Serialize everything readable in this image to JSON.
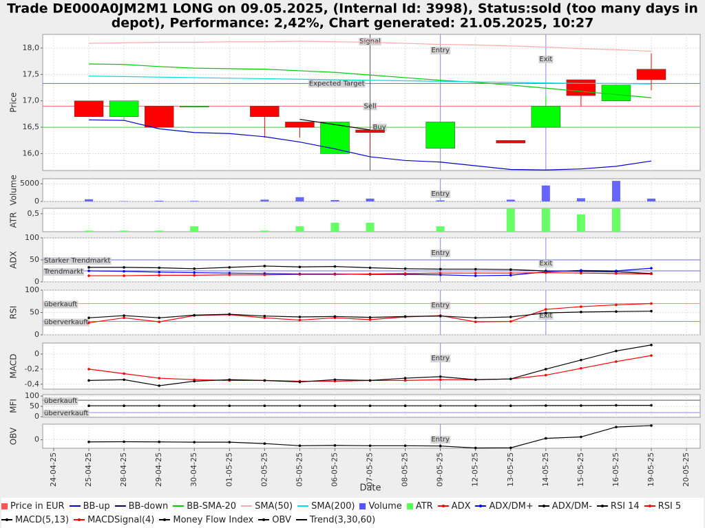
{
  "chart_data": {
    "type": "multipanel",
    "title_lines": [
      "Trade DE000A0JM2M1 LONG on 09.05.2025, (Internal Id: 3998), Status:sold (too many days in",
      "depot), Performance: 2,42%, Chart generated: 21.05.2025, 10:27"
    ],
    "xlabel": "Date",
    "categories": [
      "24-04-25",
      "25-04-25",
      "28-04-25",
      "29-04-25",
      "30-04-25",
      "01-05-25",
      "02-05-25",
      "05-05-25",
      "06-05-25",
      "07-05-25",
      "08-05-25",
      "09-05-25",
      "12-05-25",
      "13-05-25",
      "14-05-25",
      "15-05-25",
      "16-05-25",
      "19-05-25",
      "20-05-25"
    ],
    "grid": true,
    "panels": [
      {
        "type": "candlestick",
        "ylabel": "Price",
        "ylim": [
          15.68,
          18.26
        ],
        "yticks": [
          {
            "value": 16,
            "label": "16,0"
          },
          {
            "value": 16.5,
            "label": "16,5"
          },
          {
            "value": 17,
            "label": "17,0"
          },
          {
            "value": 17.5,
            "label": "17,5"
          },
          {
            "value": 18,
            "label": "18,0"
          }
        ],
        "up_color": "#00ff00",
        "down_color": "#ff0000",
        "open": [
          null,
          17.0,
          16.7,
          16.9,
          16.9,
          null,
          16.9,
          16.6,
          16.0,
          16.45,
          null,
          16.1,
          null,
          16.25,
          16.5,
          17.4,
          17.0,
          17.6,
          null
        ],
        "close": [
          null,
          16.7,
          17.0,
          16.5,
          16.9,
          null,
          16.7,
          16.5,
          16.6,
          16.4,
          null,
          16.6,
          null,
          16.2,
          16.9,
          17.1,
          17.3,
          17.4,
          null
        ],
        "low": [
          null,
          16.7,
          16.62,
          16.5,
          16.9,
          null,
          16.3,
          16.3,
          16.0,
          16.0,
          null,
          16.1,
          null,
          16.2,
          16.5,
          16.9,
          17.0,
          17.2,
          null
        ],
        "high": [
          null,
          17.0,
          17.0,
          16.9,
          16.9,
          null,
          16.9,
          16.6,
          16.6,
          16.45,
          null,
          16.6,
          null,
          16.25,
          17.1,
          17.4,
          17.3,
          17.9,
          null
        ],
        "series": [
          {
            "type": "line",
            "color": "#ffaaaa",
            "values": [
              null,
              18.09,
              18.1,
              18.11,
              18.11,
              18.12,
              18.12,
              18.13,
              18.12,
              18.11,
              18.09,
              18.07,
              18.06,
              18.04,
              18.02,
              17.99,
              17.97,
              17.94,
              null
            ]
          },
          {
            "type": "line",
            "color": "#00cc00",
            "values": [
              null,
              17.7,
              17.69,
              17.65,
              17.62,
              17.61,
              17.6,
              17.57,
              17.54,
              17.49,
              17.44,
              17.39,
              17.35,
              17.3,
              17.24,
              17.18,
              17.12,
              17.06,
              null
            ]
          },
          {
            "type": "line",
            "color": "#00dddd",
            "values": [
              null,
              17.47,
              17.46,
              17.45,
              17.44,
              17.43,
              17.42,
              17.41,
              17.4,
              17.39,
              17.38,
              17.37,
              17.36,
              17.35,
              17.34,
              17.33,
              17.33,
              17.32,
              null
            ]
          },
          {
            "type": "line",
            "color": "#0000cc",
            "values": [
              null,
              16.64,
              16.63,
              16.47,
              16.4,
              16.38,
              16.32,
              16.22,
              16.09,
              15.94,
              15.87,
              15.84,
              15.77,
              15.7,
              15.69,
              15.71,
              15.76,
              15.86,
              null
            ]
          },
          {
            "type": "line",
            "color": "#000000",
            "values": [
              null,
              null,
              null,
              null,
              null,
              null,
              null,
              16.65,
              16.55,
              16.45,
              null,
              null,
              null,
              null,
              null,
              null,
              null,
              null,
              null
            ]
          }
        ],
        "hlines": [
          {
            "label": "Expected Target",
            "value": 17.33,
            "color": "#6666ff"
          },
          {
            "label": "Sell",
            "value": 16.9,
            "color": "#ff6666"
          },
          {
            "label": "Buy",
            "value": 16.5,
            "color": "#44cc44"
          }
        ],
        "vlines": [
          {
            "label": "Signal",
            "at": "07-05-25",
            "color": "#555555"
          },
          {
            "label": "Entry",
            "at": "09-05-25",
            "color": "#8888ff"
          },
          {
            "label": "Exit",
            "at": "14-05-25",
            "color": "#8888ff"
          }
        ]
      },
      {
        "type": "bar",
        "ylabel": "Volume",
        "ylim": [
          0,
          6400
        ],
        "yticks": [
          0,
          5000
        ],
        "series": [
          {
            "type": "bar",
            "color": "#6666ff",
            "values": [
              null,
              600,
              100,
              200,
              150,
              null,
              500,
              1200,
              400,
              800,
              null,
              300,
              null,
              500,
              4500,
              900,
              5800,
              800,
              null
            ]
          }
        ],
        "hlines": [],
        "vlines": [
          {
            "label": "Entry",
            "at": "09-05-25",
            "color": "#8888ff"
          }
        ]
      },
      {
        "type": "bar",
        "ylabel": "ATR",
        "ylim": [
          0,
          0.65
        ],
        "yticks": [
          {
            "value": 0.5,
            "label": "0,5"
          }
        ],
        "series": [
          {
            "type": "bar",
            "color": "#66ff66",
            "values": [
              null,
              0.03,
              0.03,
              0.03,
              0.15,
              null,
              0.03,
              0.15,
              0.25,
              0.25,
              null,
              0.15,
              null,
              0.65,
              0.65,
              0.48,
              0.65,
              null,
              null
            ]
          }
        ],
        "hlines": [],
        "vlines": []
      },
      {
        "type": "line",
        "ylabel": "ADX",
        "ylim": [
          0,
          100
        ],
        "yticks": [
          0,
          50,
          100
        ],
        "series": [
          {
            "type": "line",
            "markers": true,
            "color": "#000000",
            "values": [
              null,
              33,
              33,
              32,
              30,
              33,
              36,
              34,
              35,
              32,
              30,
              29,
              29,
              28,
              25,
              24,
              23,
              19,
              null
            ]
          },
          {
            "type": "line",
            "markers": true,
            "color": "#0000ff",
            "values": [
              null,
              25,
              24,
              22,
              21,
              20,
              19,
              18,
              18,
              17,
              17,
              16,
              14,
              15,
              23,
              26,
              25,
              31,
              null
            ]
          },
          {
            "type": "line",
            "markers": true,
            "color": "#ff0000",
            "values": [
              null,
              14,
              14,
              15,
              15,
              16,
              16,
              17,
              17,
              18,
              19,
              20,
              20,
              20,
              21,
              20,
              19,
              18,
              null
            ]
          }
        ],
        "hlines": [
          {
            "label": "Starker Trendmarkt",
            "value": 50,
            "color": "#6666ff"
          },
          {
            "label": "Trendmarkt",
            "value": 25,
            "color": "#6666ff"
          }
        ],
        "vlines": [
          {
            "label": "Entry",
            "at": "09-05-25",
            "color": "#8888ff"
          },
          {
            "label": "Exit",
            "at": "14-05-25",
            "color": "#8888ff"
          }
        ]
      },
      {
        "type": "line",
        "ylabel": "RSI",
        "ylim": [
          0,
          100
        ],
        "yticks": [
          0,
          50,
          100
        ],
        "series": [
          {
            "type": "line",
            "markers": true,
            "color": "#ff0000",
            "values": [
              null,
              27,
              38,
              29,
              43,
              45,
              38,
              33,
              38,
              34,
              40,
              43,
              29,
              30,
              57,
              63,
              67,
              70,
              null
            ]
          },
          {
            "type": "line",
            "markers": true,
            "color": "#000000",
            "values": [
              null,
              38,
              43,
              38,
              44,
              46,
              42,
              40,
              41,
              39,
              41,
              42,
              38,
              40,
              49,
              51,
              52,
              53,
              null
            ]
          }
        ],
        "hlines": [
          {
            "label": "überkauft",
            "value": 70,
            "color": "#ff8888"
          },
          {
            "label": "überverkauft",
            "value": 30,
            "color": "#8888ff"
          }
        ],
        "vlines": [
          {
            "label": "Entry",
            "at": "09-05-25",
            "color": "#8888ff"
          },
          {
            "label": "Exit",
            "at": "14-05-25",
            "color": "#8888ff"
          }
        ]
      },
      {
        "type": "line",
        "ylabel": "MACD",
        "ylim": [
          -0.465,
          0.145
        ],
        "yticks": [
          0,
          {
            "value": -0.2,
            "label": "-0,2"
          },
          {
            "value": -0.4,
            "label": "-0,4"
          }
        ],
        "series": [
          {
            "type": "line",
            "markers": true,
            "color": "#ff0000",
            "values": [
              null,
              -0.2,
              -0.26,
              -0.32,
              -0.34,
              -0.35,
              -0.35,
              -0.36,
              -0.36,
              -0.35,
              -0.35,
              -0.34,
              -0.34,
              -0.33,
              -0.28,
              -0.19,
              -0.1,
              -0.02,
              null
            ]
          },
          {
            "type": "line",
            "markers": true,
            "color": "#000000",
            "values": [
              null,
              -0.35,
              -0.34,
              -0.42,
              -0.36,
              -0.34,
              -0.35,
              -0.37,
              -0.34,
              -0.35,
              -0.32,
              -0.3,
              -0.34,
              -0.33,
              -0.2,
              -0.08,
              0.04,
              0.12,
              null
            ]
          }
        ],
        "hlines": [],
        "vlines": [
          {
            "label": "Entry",
            "at": "09-05-25",
            "color": "#8888ff"
          }
        ]
      },
      {
        "type": "line",
        "ylabel": "MFI",
        "ylim": [
          -3,
          107
        ],
        "yticks": [
          0,
          50,
          100
        ],
        "series": [
          {
            "type": "line",
            "markers": true,
            "color": "#000000",
            "values": [
              null,
              53,
              53,
              53,
              53,
              53,
              53,
              53,
              53,
              53,
              53,
              53,
              53,
              53,
              54,
              54,
              55,
              55,
              null
            ]
          }
        ],
        "hlines": [
          {
            "label": "überkauft",
            "value": 80,
            "color": "#555555"
          },
          {
            "label": "überverkauft",
            "value": 20,
            "color": "#8888ff"
          }
        ],
        "vlines": []
      },
      {
        "type": "line",
        "ylabel": "OBV",
        "ylim": [
          -6000,
          11000
        ],
        "yticks": [
          0
        ],
        "series": [
          {
            "type": "line",
            "markers": true,
            "color": "#000000",
            "values": [
              null,
              -1500,
              -1400,
              -1500,
              -1700,
              -1700,
              -2700,
              -4200,
              -4000,
              -4200,
              -4200,
              -4400,
              -5800,
              -5700,
              1000,
              2000,
              9000,
              10000,
              null
            ]
          }
        ],
        "hlines": [],
        "vlines": [
          {
            "label": "Entry",
            "at": "09-05-25",
            "color": "#8888ff"
          }
        ]
      }
    ],
    "legend": [
      {
        "name": "Price in EUR",
        "color": "#ff5555",
        "marker": "square"
      },
      {
        "name": "BB-up",
        "color": "#0000cc",
        "marker": "line"
      },
      {
        "name": "BB-down",
        "color": "#000066",
        "marker": "line"
      },
      {
        "name": "BB-SMA-20",
        "color": "#00cc00",
        "marker": "line"
      },
      {
        "name": "SMA(50)",
        "color": "#ffaaaa",
        "marker": "line"
      },
      {
        "name": "SMA(200)",
        "color": "#00dddd",
        "marker": "line"
      },
      {
        "name": "Volume",
        "color": "#5555ff",
        "marker": "square"
      },
      {
        "name": "ATR",
        "color": "#55ff55",
        "marker": "square"
      },
      {
        "name": "ADX",
        "color": "#ff0000",
        "marker": "dot"
      },
      {
        "name": "ADX/DM+",
        "color": "#0000ff",
        "marker": "dot"
      },
      {
        "name": "ADX/DM-",
        "color": "#000000",
        "marker": "dot"
      },
      {
        "name": "RSI 14",
        "color": "#000000",
        "marker": "dot"
      },
      {
        "name": "RSI 5",
        "color": "#ff0000",
        "marker": "dot"
      },
      {
        "name": "MACD(5,13)",
        "color": "#000000",
        "marker": "dot"
      },
      {
        "name": "MACDSignal(4)",
        "color": "#ff0000",
        "marker": "dot"
      },
      {
        "name": "Money Flow Index",
        "color": "#000000",
        "marker": "dot"
      },
      {
        "name": "OBV",
        "color": "#000000",
        "marker": "dot"
      },
      {
        "name": "Trend(3,30,60)",
        "color": "#000000",
        "marker": "line"
      }
    ]
  }
}
